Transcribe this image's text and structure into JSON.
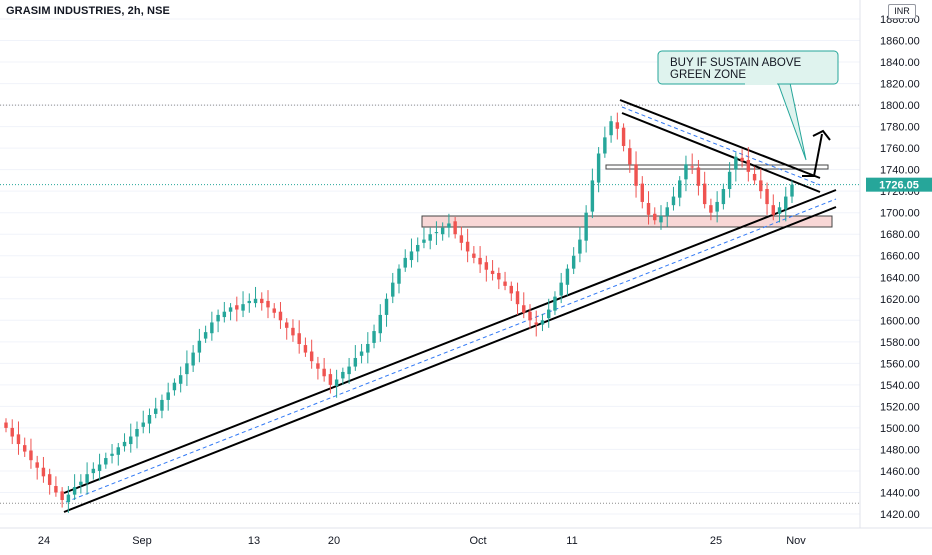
{
  "header": {
    "title": "GRASIM INDUSTRIES, 2h, NSE",
    "currency": "INR"
  },
  "colors": {
    "up": "#26a69a",
    "down": "#ef5350",
    "grid": "#f0f3fa",
    "trendline": "#000000",
    "mid_dashed": "#3179f5",
    "zone_fill": "#f8d7d6",
    "callout_fill": "#dff3ee",
    "callout_border": "#26a69a",
    "price_tag": "#26a69a"
  },
  "annotation": {
    "line1": "BUY IF SUSTAIN ABOVE",
    "line2": "GREEN ZONE"
  },
  "chart_data": {
    "type": "candlestick",
    "title": "GRASIM INDUSTRIES, 2h, NSE",
    "ylim": [
      1410,
      1880
    ],
    "y_ticks": [
      1420,
      1440,
      1460,
      1480,
      1500,
      1520,
      1540,
      1560,
      1580,
      1600,
      1620,
      1640,
      1660,
      1680,
      1700,
      1720,
      1740,
      1760,
      1780,
      1800,
      1820,
      1840,
      1860,
      1880
    ],
    "y_tick_labels": [
      "1420.00",
      "1440.00",
      "1460.00",
      "1480.00",
      "1500.00",
      "1520.00",
      "1540.00",
      "1560.00",
      "1580.00",
      "1600.00",
      "1620.00",
      "1640.00",
      "1660.00",
      "1680.00",
      "1700.00",
      "1720.00",
      "1740.00",
      "1760.00",
      "1780.00",
      "1800.00",
      "1820.00",
      "1840.00",
      "1860.00",
      "1880.00"
    ],
    "x_labels": [
      "24",
      "Sep",
      "13",
      "20",
      "Oct",
      "11",
      "25",
      "Nov"
    ],
    "last_price": 1726.05,
    "last_price_label": "1726.05",
    "reference_levels": [
      1800,
      1430
    ],
    "closes": [
      1500,
      1492,
      1485,
      1478,
      1470,
      1463,
      1455,
      1447,
      1440,
      1433,
      1438,
      1445,
      1450,
      1457,
      1462,
      1466,
      1472,
      1476,
      1482,
      1487,
      1492,
      1499,
      1505,
      1512,
      1518,
      1526,
      1533,
      1542,
      1549,
      1560,
      1570,
      1581,
      1589,
      1598,
      1605,
      1608,
      1612,
      1610,
      1615,
      1618,
      1620,
      1616,
      1612,
      1607,
      1600,
      1593,
      1586,
      1578,
      1570,
      1562,
      1555,
      1548,
      1540,
      1545,
      1552,
      1557,
      1565,
      1571,
      1578,
      1590,
      1605,
      1620,
      1635,
      1648,
      1658,
      1664,
      1670,
      1675,
      1680,
      1682,
      1686,
      1690,
      1680,
      1672,
      1664,
      1658,
      1652,
      1647,
      1643,
      1638,
      1632,
      1625,
      1615,
      1607,
      1600,
      1596,
      1600,
      1610,
      1622,
      1635,
      1648,
      1660,
      1675,
      1700,
      1730,
      1755,
      1770,
      1785,
      1778,
      1762,
      1745,
      1725,
      1710,
      1698,
      1693,
      1697,
      1705,
      1715,
      1730,
      1745,
      1742,
      1725,
      1708,
      1700,
      1710,
      1722,
      1738,
      1752,
      1748,
      1738,
      1730,
      1720,
      1708,
      1698,
      1705,
      1715,
      1726.05
    ]
  }
}
